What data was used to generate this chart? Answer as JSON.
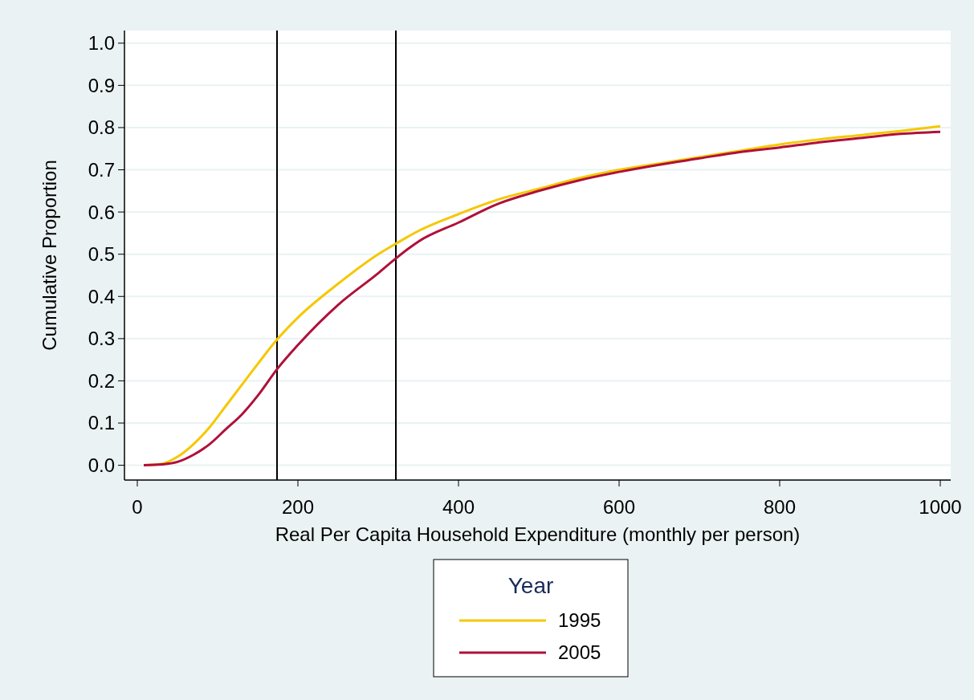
{
  "chart_data": {
    "type": "line",
    "xlabel": "Real Per Capita Household Expenditure (monthly per person)",
    "ylabel": "Cumulative Proportion",
    "legend_title": "Year",
    "legend": "bottom",
    "grid": "y",
    "line_style": "solid",
    "xlim": [
      -16,
      1013
    ],
    "ylim": [
      -0.035,
      1.03
    ],
    "xticks": [
      0,
      200,
      400,
      600,
      800,
      1000
    ],
    "yticks": [
      {
        "value": 0,
        "label": "0.0"
      },
      {
        "value": 0.1,
        "label": "0.1"
      },
      {
        "value": 0.2,
        "label": "0.2"
      },
      {
        "value": 0.3,
        "label": "0.3"
      },
      {
        "value": 0.4,
        "label": "0.4"
      },
      {
        "value": 0.5,
        "label": "0.5"
      },
      {
        "value": 0.6,
        "label": "0.6"
      },
      {
        "value": 0.7,
        "label": "0.7"
      },
      {
        "value": 0.8,
        "label": "0.8"
      },
      {
        "value": 0.9,
        "label": "0.9"
      },
      {
        "value": 1,
        "label": "1.0"
      }
    ],
    "x": [
      8,
      30,
      50,
      70,
      90,
      110,
      130,
      150,
      175,
      200,
      250,
      300,
      322,
      350,
      400,
      450,
      500,
      550,
      600,
      650,
      700,
      750,
      800,
      850,
      900,
      950,
      1000
    ],
    "series": [
      {
        "name": "1995",
        "color": "#f5c800",
        "values": [
          0,
          0.003,
          0.02,
          0.05,
          0.09,
          0.14,
          0.19,
          0.24,
          0.3,
          0.35,
          0.43,
          0.5,
          0.525,
          0.555,
          0.595,
          0.63,
          0.655,
          0.68,
          0.7,
          0.715,
          0.73,
          0.745,
          0.76,
          0.772,
          0.782,
          0.792,
          0.803
        ]
      },
      {
        "name": "2005",
        "color": "#b0103a",
        "values": [
          0,
          0.002,
          0.008,
          0.025,
          0.05,
          0.085,
          0.12,
          0.165,
          0.23,
          0.285,
          0.38,
          0.455,
          0.49,
          0.53,
          0.575,
          0.62,
          0.65,
          0.675,
          0.695,
          0.712,
          0.727,
          0.742,
          0.753,
          0.765,
          0.775,
          0.785,
          0.79
        ]
      }
    ],
    "ref_lines": [
      {
        "axis": "x",
        "value": 174,
        "color": "#000000"
      },
      {
        "axis": "x",
        "value": 322,
        "color": "#000000"
      }
    ]
  }
}
